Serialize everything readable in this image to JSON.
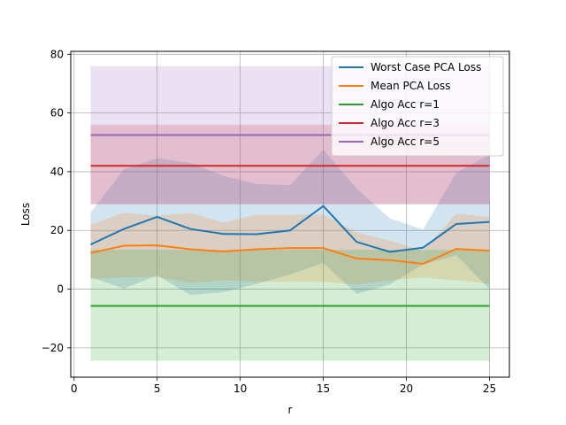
{
  "chart_data": {
    "type": "line",
    "title": "",
    "xlabel": "r",
    "ylabel": "Loss",
    "xlim": [
      -0.2,
      26.2
    ],
    "ylim": [
      -30,
      81
    ],
    "xticks": [
      0,
      5,
      10,
      15,
      20,
      25
    ],
    "yticks": [
      -20,
      0,
      20,
      40,
      60,
      80
    ],
    "xtick_labels": [
      "0",
      "5",
      "10",
      "15",
      "20",
      "25"
    ],
    "ytick_labels": [
      "−20",
      "0",
      "20",
      "40",
      "60",
      "80"
    ],
    "grid": true,
    "legend_position": "top-right",
    "x": [
      1,
      3,
      5,
      7,
      9,
      11,
      13,
      15,
      17,
      19,
      21,
      23,
      25
    ],
    "series": [
      {
        "name": "Worst Case PCA Loss",
        "color": "#1f77b4",
        "values": [
          15.2,
          20.5,
          24.6,
          20.5,
          18.8,
          18.7,
          20.0,
          28.3,
          16.1,
          12.7,
          14.1,
          22.2,
          22.9
        ],
        "band_low": [
          4.0,
          0.2,
          4.7,
          -2.0,
          -1.0,
          1.8,
          5.0,
          8.9,
          -1.6,
          1.6,
          8.4,
          11.5,
          0.0
        ],
        "band_high": [
          26.1,
          40.8,
          44.6,
          43.0,
          38.6,
          35.8,
          35.4,
          47.6,
          34.3,
          24.1,
          20.3,
          39.6,
          45.9
        ]
      },
      {
        "name": "Mean PCA Loss",
        "color": "#ff7f0e",
        "values": [
          12.3,
          14.8,
          14.9,
          13.6,
          12.8,
          13.6,
          14.0,
          14.0,
          10.4,
          9.9,
          8.6,
          13.7,
          13.1
        ],
        "band_low": [
          3.4,
          4.0,
          4.2,
          2.0,
          3.0,
          2.5,
          2.5,
          2.5,
          1.5,
          3.0,
          4.0,
          3.0,
          1.8
        ],
        "band_high": [
          22.0,
          26.0,
          25.0,
          25.9,
          22.7,
          25.4,
          25.4,
          25.4,
          19.3,
          16.5,
          13.1,
          25.7,
          24.6
        ]
      },
      {
        "name": "Algo Acc r=1",
        "color": "#2ca02c",
        "values": [
          -5.7,
          -5.7,
          -5.7,
          -5.7,
          -5.7,
          -5.7,
          -5.7,
          -5.7,
          -5.7,
          -5.7,
          -5.7,
          -5.7,
          -5.7
        ],
        "band_low": [
          -24.4,
          -24.4,
          -24.4,
          -24.4,
          -24.4,
          -24.4,
          -24.4,
          -24.4,
          -24.4,
          -24.4,
          -24.4,
          -24.4,
          -24.4
        ],
        "band_high": [
          13.4,
          13.4,
          13.4,
          13.4,
          13.4,
          13.4,
          13.4,
          13.4,
          13.4,
          13.4,
          13.4,
          13.4,
          13.4
        ]
      },
      {
        "name": "Algo Acc r=3",
        "color": "#d62728",
        "values": [
          42.0,
          42.0,
          42.0,
          42.0,
          42.0,
          42.0,
          42.0,
          42.0,
          42.0,
          42.0,
          42.0,
          42.0,
          42.0
        ],
        "band_low": [
          28.9,
          28.9,
          28.9,
          28.9,
          28.9,
          28.9,
          28.9,
          28.9,
          28.9,
          28.9,
          28.9,
          28.9,
          28.9
        ],
        "band_high": [
          56.0,
          56.0,
          56.0,
          56.0,
          56.0,
          56.0,
          56.0,
          56.0,
          56.0,
          56.0,
          56.0,
          56.0,
          56.0
        ]
      },
      {
        "name": "Algo Acc r=5",
        "color": "#9467bd",
        "values": [
          52.5,
          52.5,
          52.5,
          52.5,
          52.5,
          52.5,
          52.5,
          52.5,
          52.5,
          52.5,
          52.5,
          52.5,
          52.5
        ],
        "band_low": [
          29.0,
          29.0,
          29.0,
          29.0,
          29.0,
          29.0,
          29.0,
          29.0,
          29.0,
          29.0,
          29.0,
          29.0,
          29.0
        ],
        "band_high": [
          76.0,
          76.0,
          76.0,
          76.0,
          76.0,
          76.0,
          76.0,
          76.0,
          76.0,
          76.0,
          76.0,
          76.0,
          76.0
        ]
      }
    ]
  }
}
